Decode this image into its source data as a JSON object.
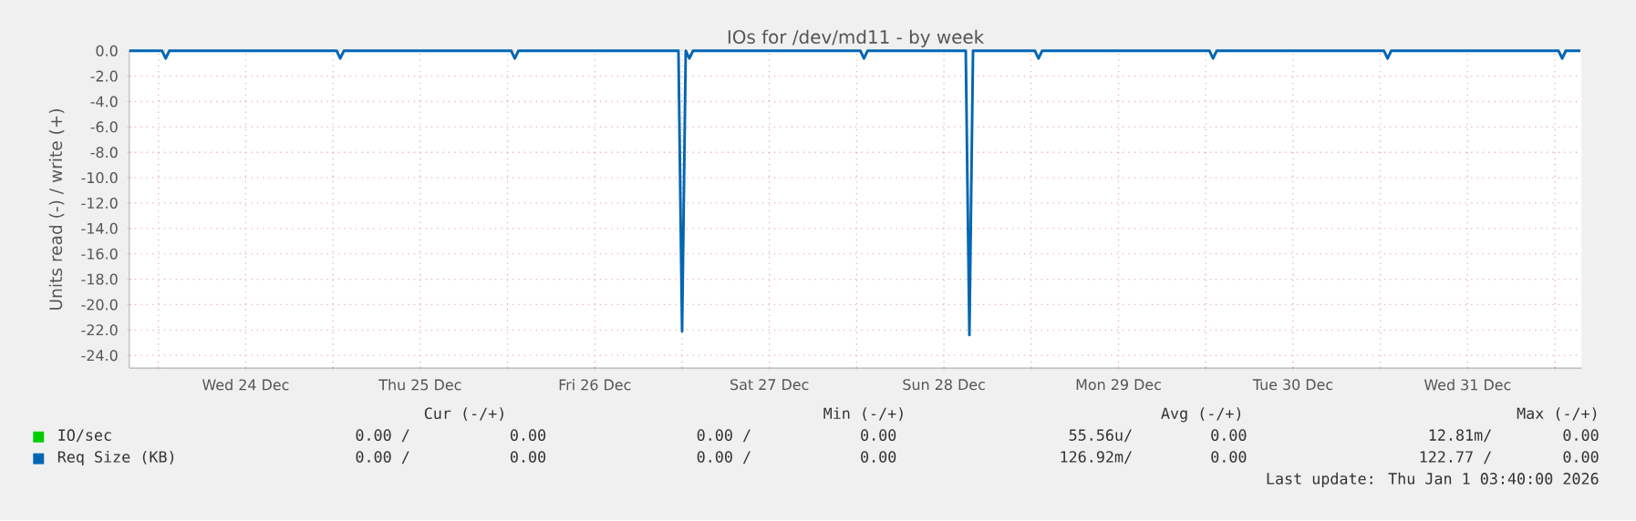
{
  "chart_data": {
    "type": "line",
    "title": "IOs for /dev/md11 - by week",
    "ylabel": "Units read (-) / write (+)",
    "xlim": [
      "2025-12-23T20:00",
      "2026-01-01T03:40"
    ],
    "ylim": [
      -25,
      0
    ],
    "xticks": [
      {
        "value": "2025-12-24T00:00",
        "label": null
      },
      {
        "value": "2025-12-24T12:00",
        "label": "Wed 24 Dec"
      },
      {
        "value": "2025-12-25T00:00",
        "label": null
      },
      {
        "value": "2025-12-25T12:00",
        "label": "Thu 25 Dec"
      },
      {
        "value": "2025-12-26T00:00",
        "label": null
      },
      {
        "value": "2025-12-26T12:00",
        "label": "Fri 26 Dec"
      },
      {
        "value": "2025-12-27T00:00",
        "label": null
      },
      {
        "value": "2025-12-27T12:00",
        "label": "Sat 27 Dec"
      },
      {
        "value": "2025-12-28T00:00",
        "label": null
      },
      {
        "value": "2025-12-28T12:00",
        "label": "Sun 28 Dec"
      },
      {
        "value": "2025-12-29T00:00",
        "label": null
      },
      {
        "value": "2025-12-29T12:00",
        "label": "Mon 29 Dec"
      },
      {
        "value": "2025-12-30T00:00",
        "label": null
      },
      {
        "value": "2025-12-30T12:00",
        "label": "Tue 30 Dec"
      },
      {
        "value": "2025-12-31T00:00",
        "label": null
      },
      {
        "value": "2025-12-31T12:00",
        "label": "Wed 31 Dec"
      },
      {
        "value": "2026-01-01T00:00",
        "label": null
      }
    ],
    "yticks": [
      {
        "value": 0,
        "label": "0.0"
      },
      {
        "value": -2,
        "label": "-2.0"
      },
      {
        "value": -4,
        "label": "-4.0"
      },
      {
        "value": -6,
        "label": "-6.0"
      },
      {
        "value": -8,
        "label": "-8.0"
      },
      {
        "value": -10,
        "label": "-10.0"
      },
      {
        "value": -12,
        "label": "-12.0"
      },
      {
        "value": -14,
        "label": "-14.0"
      },
      {
        "value": -16,
        "label": "-16.0"
      },
      {
        "value": -18,
        "label": "-18.0"
      },
      {
        "value": -20,
        "label": "-20.0"
      },
      {
        "value": -22,
        "label": "-22.0"
      },
      {
        "value": -24,
        "label": "-24.0"
      }
    ],
    "grid": true,
    "legend": "bottom left",
    "marker": "none",
    "line_style": "solid",
    "series": [
      {
        "name": "IO/sec",
        "color": "#00cc00"
      },
      {
        "name": "Req Size (KB)",
        "color": "#0066b3",
        "x": [
          "2025-12-23T20:00",
          "2025-12-24T00:30",
          "2025-12-24T01:00",
          "2025-12-24T01:30",
          "2025-12-25T00:30",
          "2025-12-25T01:00",
          "2025-12-25T01:30",
          "2025-12-26T00:30",
          "2025-12-26T01:00",
          "2025-12-26T01:30",
          "2025-12-26T23:30",
          "2025-12-27T00:00",
          "2025-12-27T00:30",
          "2025-12-27T01:00",
          "2025-12-27T01:30",
          "2025-12-28T00:30",
          "2025-12-28T01:00",
          "2025-12-28T01:30",
          "2025-12-28T15:00",
          "2025-12-28T15:30",
          "2025-12-28T16:00",
          "2025-12-29T00:30",
          "2025-12-29T01:00",
          "2025-12-29T01:30",
          "2025-12-30T00:30",
          "2025-12-30T01:00",
          "2025-12-30T01:30",
          "2025-12-31T00:30",
          "2025-12-31T01:00",
          "2025-12-31T01:30",
          "2026-01-01T00:30",
          "2026-01-01T01:00",
          "2026-01-01T01:30",
          "2026-01-01T03:30"
        ],
        "values": [
          0,
          0,
          -0.6,
          0,
          0,
          -0.6,
          0,
          0,
          -0.6,
          0,
          0,
          -22.1,
          0,
          -0.6,
          0,
          0,
          -0.6,
          0,
          0,
          -22.4,
          0,
          0,
          -0.6,
          0,
          0,
          -0.6,
          0,
          0,
          -0.6,
          0,
          0,
          -0.6,
          0,
          0
        ]
      }
    ],
    "annotations": [
      "Cur (-/+)",
      "Min (-/+)",
      "Avg (-/+)",
      "Max (-/+)",
      "0.00 /",
      "0.00",
      "0.00 /",
      "0.00",
      "55.56u/",
      "0.00",
      "12.81m/",
      "0.00",
      "0.00 /",
      "0.00",
      "0.00 /",
      "0.00",
      "126.92m/",
      "0.00",
      "122.77 /",
      "0.00",
      "Last update: Thu Jan  1 03:40:00 2026"
    ]
  }
}
